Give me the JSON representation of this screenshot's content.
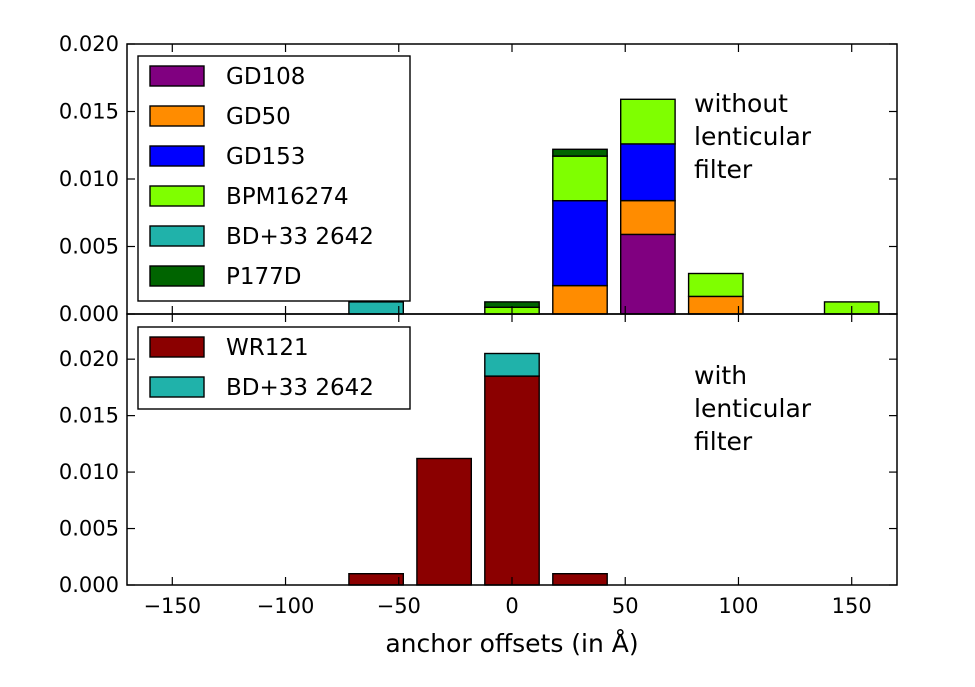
{
  "chart_data": [
    {
      "type": "bar",
      "stacked": true,
      "panel": "top",
      "bin_centers": [
        -150,
        -120,
        -90,
        -60,
        -30,
        0,
        30,
        60,
        90,
        120,
        150
      ],
      "bar_width": 24,
      "series": [
        {
          "name": "GD108",
          "color": "#800080",
          "values": [
            0,
            0,
            0,
            0,
            0,
            0,
            0,
            0.0059,
            0,
            0,
            0
          ]
        },
        {
          "name": "GD50",
          "color": "#ff8c00",
          "values": [
            0,
            0,
            0,
            0,
            0,
            0,
            0.0021,
            0.0025,
            0.0013,
            0,
            0
          ]
        },
        {
          "name": "GD153",
          "color": "#0000ff",
          "values": [
            0,
            0,
            0,
            0,
            0,
            0,
            0.0063,
            0.0042,
            0,
            0,
            0
          ]
        },
        {
          "name": "BPM16274",
          "color": "#7fff00",
          "values": [
            0,
            0,
            0,
            0,
            0,
            0.0005,
            0.0033,
            0.0033,
            0.0017,
            0,
            0.0009
          ]
        },
        {
          "name": "BD+33 2642",
          "color": "#20b2aa",
          "values": [
            0,
            0,
            0,
            0.0009,
            0,
            0,
            0,
            0,
            0,
            0,
            0
          ]
        },
        {
          "name": "P177D",
          "color": "#006400",
          "values": [
            0,
            0,
            0,
            0,
            0,
            0.0004,
            0.0005,
            0,
            0,
            0,
            0
          ]
        }
      ],
      "ylim": [
        0,
        0.02
      ],
      "yticks": [
        "0.000",
        "0.005",
        "0.010",
        "0.015",
        "0.020"
      ],
      "annotation": [
        "without",
        "lenticular",
        "filter"
      ],
      "legend_location": "upper left"
    },
    {
      "type": "bar",
      "stacked": true,
      "panel": "bottom",
      "bin_centers": [
        -150,
        -120,
        -90,
        -60,
        -30,
        0,
        30,
        60,
        90,
        120,
        150
      ],
      "bar_width": 24,
      "series": [
        {
          "name": "WR121",
          "color": "#8b0000",
          "values": [
            0,
            0,
            0,
            0.001,
            0.0112,
            0.0185,
            0.001,
            0,
            0,
            0,
            0
          ]
        },
        {
          "name": "BD+33 2642",
          "color": "#20b2aa",
          "values": [
            0,
            0,
            0,
            0,
            0,
            0.002,
            0,
            0,
            0,
            0,
            0
          ]
        }
      ],
      "ylim": [
        0,
        0.024
      ],
      "yticks": [
        "0.000",
        "0.005",
        "0.010",
        "0.015",
        "0.020"
      ],
      "xlim": [
        -170,
        170
      ],
      "xticks": [
        "−150",
        "−100",
        "−50",
        "0",
        "50",
        "100",
        "150"
      ],
      "xlabel": "anchor offsets (in Å)",
      "annotation": [
        "with",
        "lenticular",
        "filter"
      ],
      "legend_location": "upper left"
    }
  ],
  "colors": {
    "edge": "#000000",
    "background": "#ffffff"
  }
}
